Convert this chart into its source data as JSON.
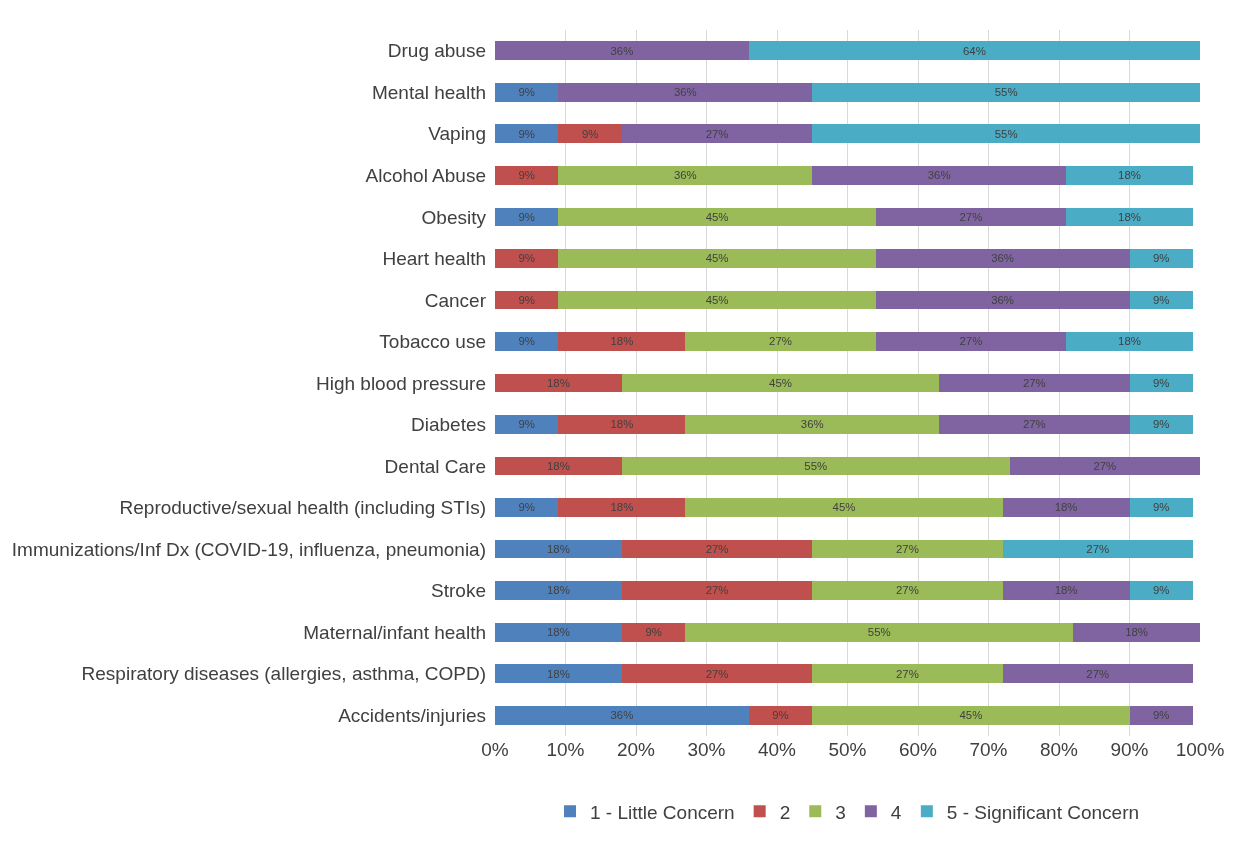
{
  "chart_data": {
    "type": "bar",
    "orientation": "horizontal",
    "stacked": true,
    "legend": "bottom",
    "grid": "x",
    "categories": [
      "Drug abuse",
      "Mental health",
      "Vaping",
      "Alcohol Abuse",
      "Obesity",
      "Heart health",
      "Cancer",
      "Tobacco use",
      "High blood pressure",
      "Diabetes",
      "Dental Care",
      "Reproductive/sexual health (including STIs)",
      "Immunizations/Inf Dx (COVID-19, influenza, pneumonia)",
      "Stroke",
      "Maternal/infant health",
      "Respiratory diseases (allergies, asthma, COPD)",
      "Accidents/injuries"
    ],
    "xlim": [
      0,
      100
    ],
    "xticks": [
      {
        "value": 0,
        "label": "0%"
      },
      {
        "value": 10,
        "label": "10%"
      },
      {
        "value": 20,
        "label": "20%"
      },
      {
        "value": 30,
        "label": "30%"
      },
      {
        "value": 40,
        "label": "40%"
      },
      {
        "value": 50,
        "label": "50%"
      },
      {
        "value": 60,
        "label": "60%"
      },
      {
        "value": 70,
        "label": "70%"
      },
      {
        "value": 80,
        "label": "80%"
      },
      {
        "value": 90,
        "label": "90%"
      },
      {
        "value": 100,
        "label": "100%"
      }
    ],
    "series": [
      {
        "name": "1 - Little Concern",
        "color": "#4f81bd",
        "values": [
          null,
          9,
          9,
          null,
          9,
          null,
          null,
          9,
          null,
          9,
          null,
          9,
          18,
          18,
          18,
          18,
          36
        ],
        "value_labels": [
          null,
          "9%",
          "9%",
          null,
          "9%",
          null,
          null,
          "9%",
          null,
          "9%",
          null,
          "9%",
          "18%",
          "18%",
          "18%",
          "18%",
          "36%"
        ]
      },
      {
        "name": "2",
        "color": "#c0504d",
        "values": [
          null,
          null,
          9,
          9,
          null,
          9,
          9,
          18,
          18,
          18,
          18,
          18,
          27,
          27,
          9,
          27,
          9
        ],
        "value_labels": [
          null,
          null,
          "9%",
          "9%",
          null,
          "9%",
          "9%",
          "18%",
          "18%",
          "18%",
          "18%",
          "18%",
          "27%",
          "27%",
          "9%",
          "27%",
          "9%"
        ]
      },
      {
        "name": "3",
        "color": "#9bbb59",
        "values": [
          null,
          null,
          null,
          36,
          45,
          45,
          45,
          27,
          45,
          36,
          55,
          45,
          27,
          27,
          55,
          27,
          45
        ],
        "value_labels": [
          null,
          null,
          null,
          "36%",
          "45%",
          "45%",
          "45%",
          "27%",
          "45%",
          "36%",
          "55%",
          "45%",
          "27%",
          "27%",
          "55%",
          "27%",
          "45%"
        ]
      },
      {
        "name": "4",
        "color": "#8064a2",
        "values": [
          36,
          36,
          27,
          36,
          27,
          36,
          36,
          27,
          27,
          27,
          27,
          18,
          null,
          18,
          18,
          27,
          9
        ],
        "value_labels": [
          "36%",
          "36%",
          "27%",
          "36%",
          "27%",
          "36%",
          "36%",
          "27%",
          "27%",
          "27%",
          "27%",
          "18%",
          null,
          "18%",
          "18%",
          "27%",
          "9%"
        ]
      },
      {
        "name": "5 - Significant Concern",
        "color": "#4bacc6",
        "values": [
          64,
          55,
          55,
          18,
          18,
          9,
          9,
          18,
          9,
          9,
          null,
          9,
          27,
          9,
          null,
          null,
          null
        ],
        "value_labels": [
          "64%",
          "55%",
          "55%",
          "18%",
          "18%",
          "9%",
          "9%",
          "18%",
          "9%",
          "9%",
          null,
          "9%",
          "27%",
          "9%",
          null,
          null,
          null
        ]
      }
    ]
  }
}
